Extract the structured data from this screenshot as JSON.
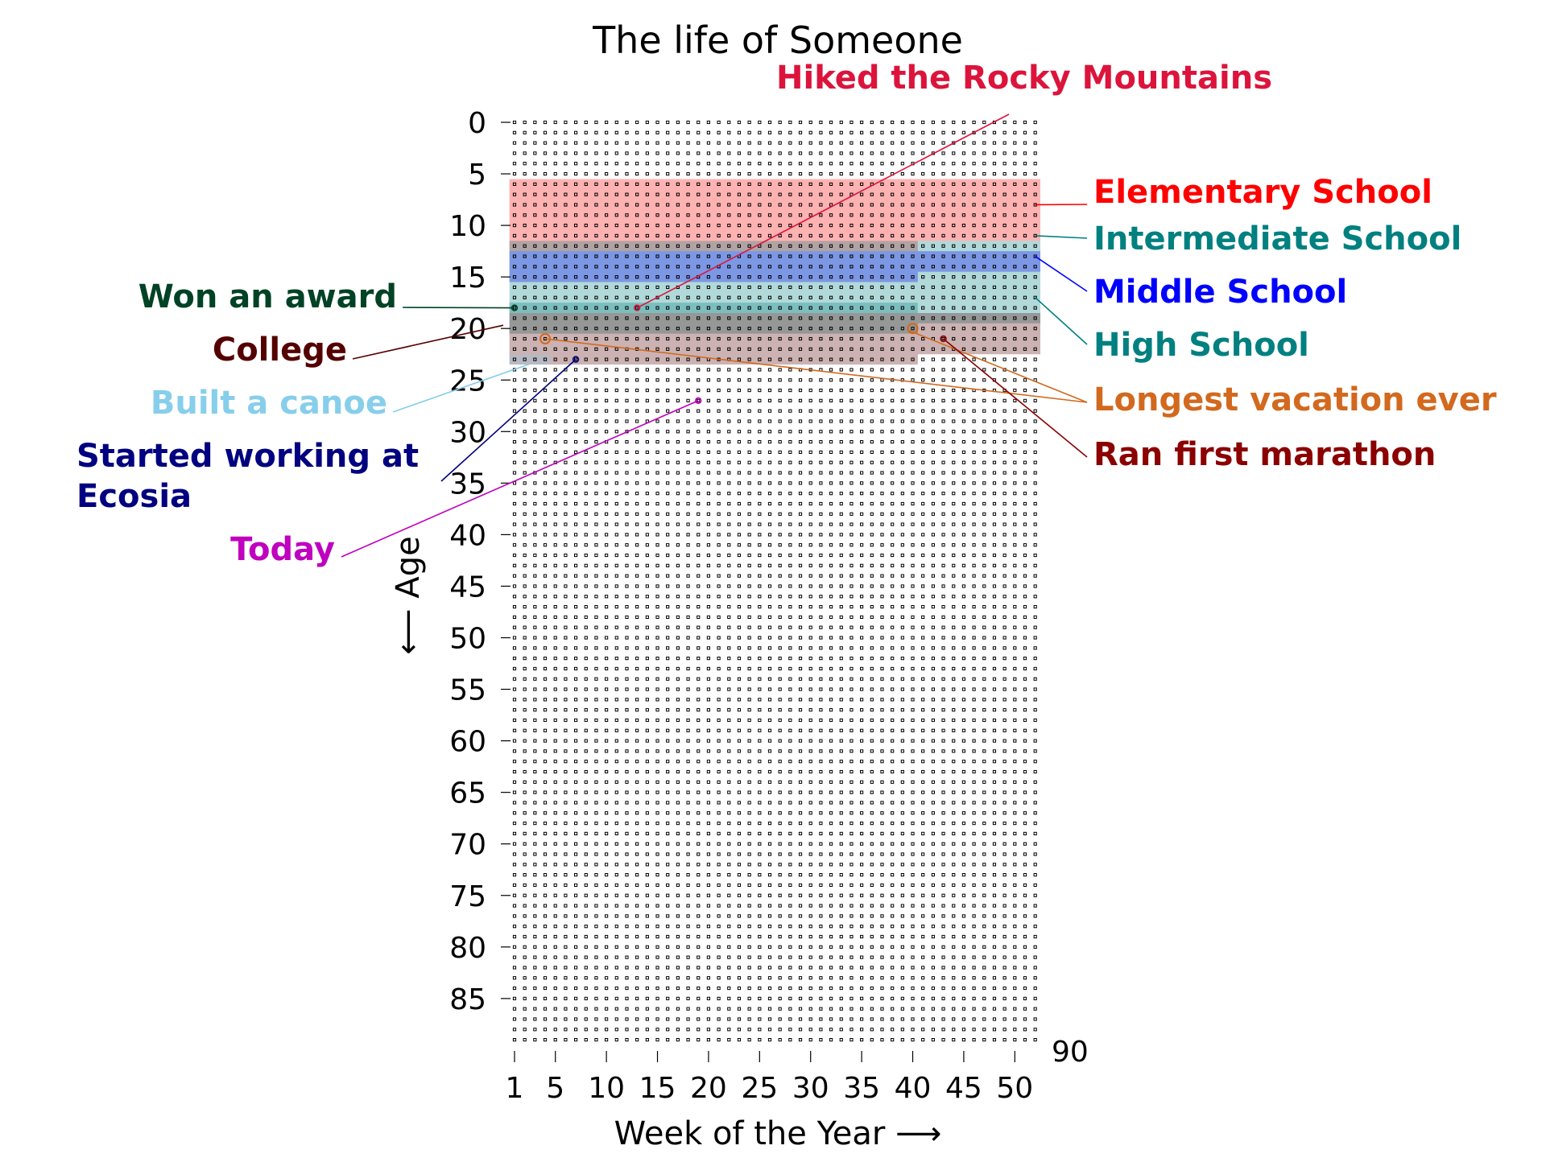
{
  "chart_data": {
    "type": "scatter",
    "title": "The life of Someone",
    "xlabel": "Week of the Year  ⟶",
    "ylabel": "⟵  Age",
    "x_ticks": [
      "1",
      "5",
      "10",
      "15",
      "20",
      "25",
      "30",
      "35",
      "40",
      "45",
      "50"
    ],
    "x_tick_values": [
      1,
      5,
      10,
      15,
      20,
      25,
      30,
      35,
      40,
      45,
      50
    ],
    "y_ticks": [
      "0",
      "5",
      "10",
      "15",
      "20",
      "25",
      "30",
      "35",
      "40",
      "45",
      "50",
      "55",
      "60",
      "65",
      "70",
      "75",
      "80",
      "85"
    ],
    "y_tick_values": [
      0,
      5,
      10,
      15,
      20,
      25,
      30,
      35,
      40,
      45,
      50,
      55,
      60,
      65,
      70,
      75,
      80,
      85
    ],
    "max_age_label": "90",
    "weeks": 52,
    "years": 90,
    "grid": "dotted week grid",
    "periods": [
      {
        "name": "Elementary School",
        "start": [
          1,
          6
        ],
        "end": [
          40,
          12
        ],
        "color": "#ff0000"
      },
      {
        "name": "Intermediate School",
        "start": [
          1,
          12
        ],
        "end": [
          40,
          18
        ],
        "color": "#008080"
      },
      {
        "name": "Middle School",
        "start": [
          1,
          13
        ],
        "end": [
          40,
          15
        ],
        "color": "#0000ff"
      },
      {
        "name": "High School",
        "start": [
          1,
          18
        ],
        "end": [
          40,
          20
        ],
        "color": "#008080"
      },
      {
        "name": "College",
        "start": [
          1,
          19
        ],
        "end": [
          40,
          23
        ],
        "color": "#550000"
      },
      {
        "name": "Built a canoe",
        "start": [
          1,
          23
        ],
        "end": [
          4,
          23
        ],
        "color": "#87ceeb"
      }
    ],
    "annotations": [
      {
        "text": "Hiked the Rocky Mountains",
        "week": 13,
        "age": 18,
        "color": "#dc143c",
        "marker": "dot"
      },
      {
        "text": "Elementary School",
        "week": 52,
        "age": 8,
        "color": "#ff0000",
        "marker": "none"
      },
      {
        "text": "Intermediate School",
        "week": 52,
        "age": 11,
        "color": "#008080",
        "marker": "none"
      },
      {
        "text": "Middle School",
        "week": 52,
        "age": 13,
        "color": "#0000ff",
        "marker": "none"
      },
      {
        "text": "High School",
        "week": 52,
        "age": 17,
        "color": "#008080",
        "marker": "none"
      },
      {
        "text": "Longest vacation ever",
        "week": 4,
        "age": 21,
        "color": "#d2691e",
        "marker": "circle"
      },
      {
        "text": "",
        "week": 40,
        "age": 20,
        "color": "#d2691e",
        "marker": "circle"
      },
      {
        "text": "Ran first marathon",
        "week": 43,
        "age": 21,
        "color": "#8b0000",
        "marker": "dot"
      },
      {
        "text": "Won an award",
        "week": 1,
        "age": 18,
        "color": "#004225",
        "marker": "dot"
      },
      {
        "text": "College",
        "week": 1,
        "age": 21,
        "color": "#550000",
        "marker": "none"
      },
      {
        "text": "Built a canoe",
        "week": 4,
        "age": 23,
        "color": "#87ceeb",
        "marker": "none"
      },
      {
        "text": "Started working at\nEcosia",
        "week": 7,
        "age": 23,
        "color": "#000080",
        "marker": "dot"
      },
      {
        "text": "Today",
        "week": 19,
        "age": 27,
        "color": "#bf00bf",
        "marker": "dot"
      }
    ]
  }
}
